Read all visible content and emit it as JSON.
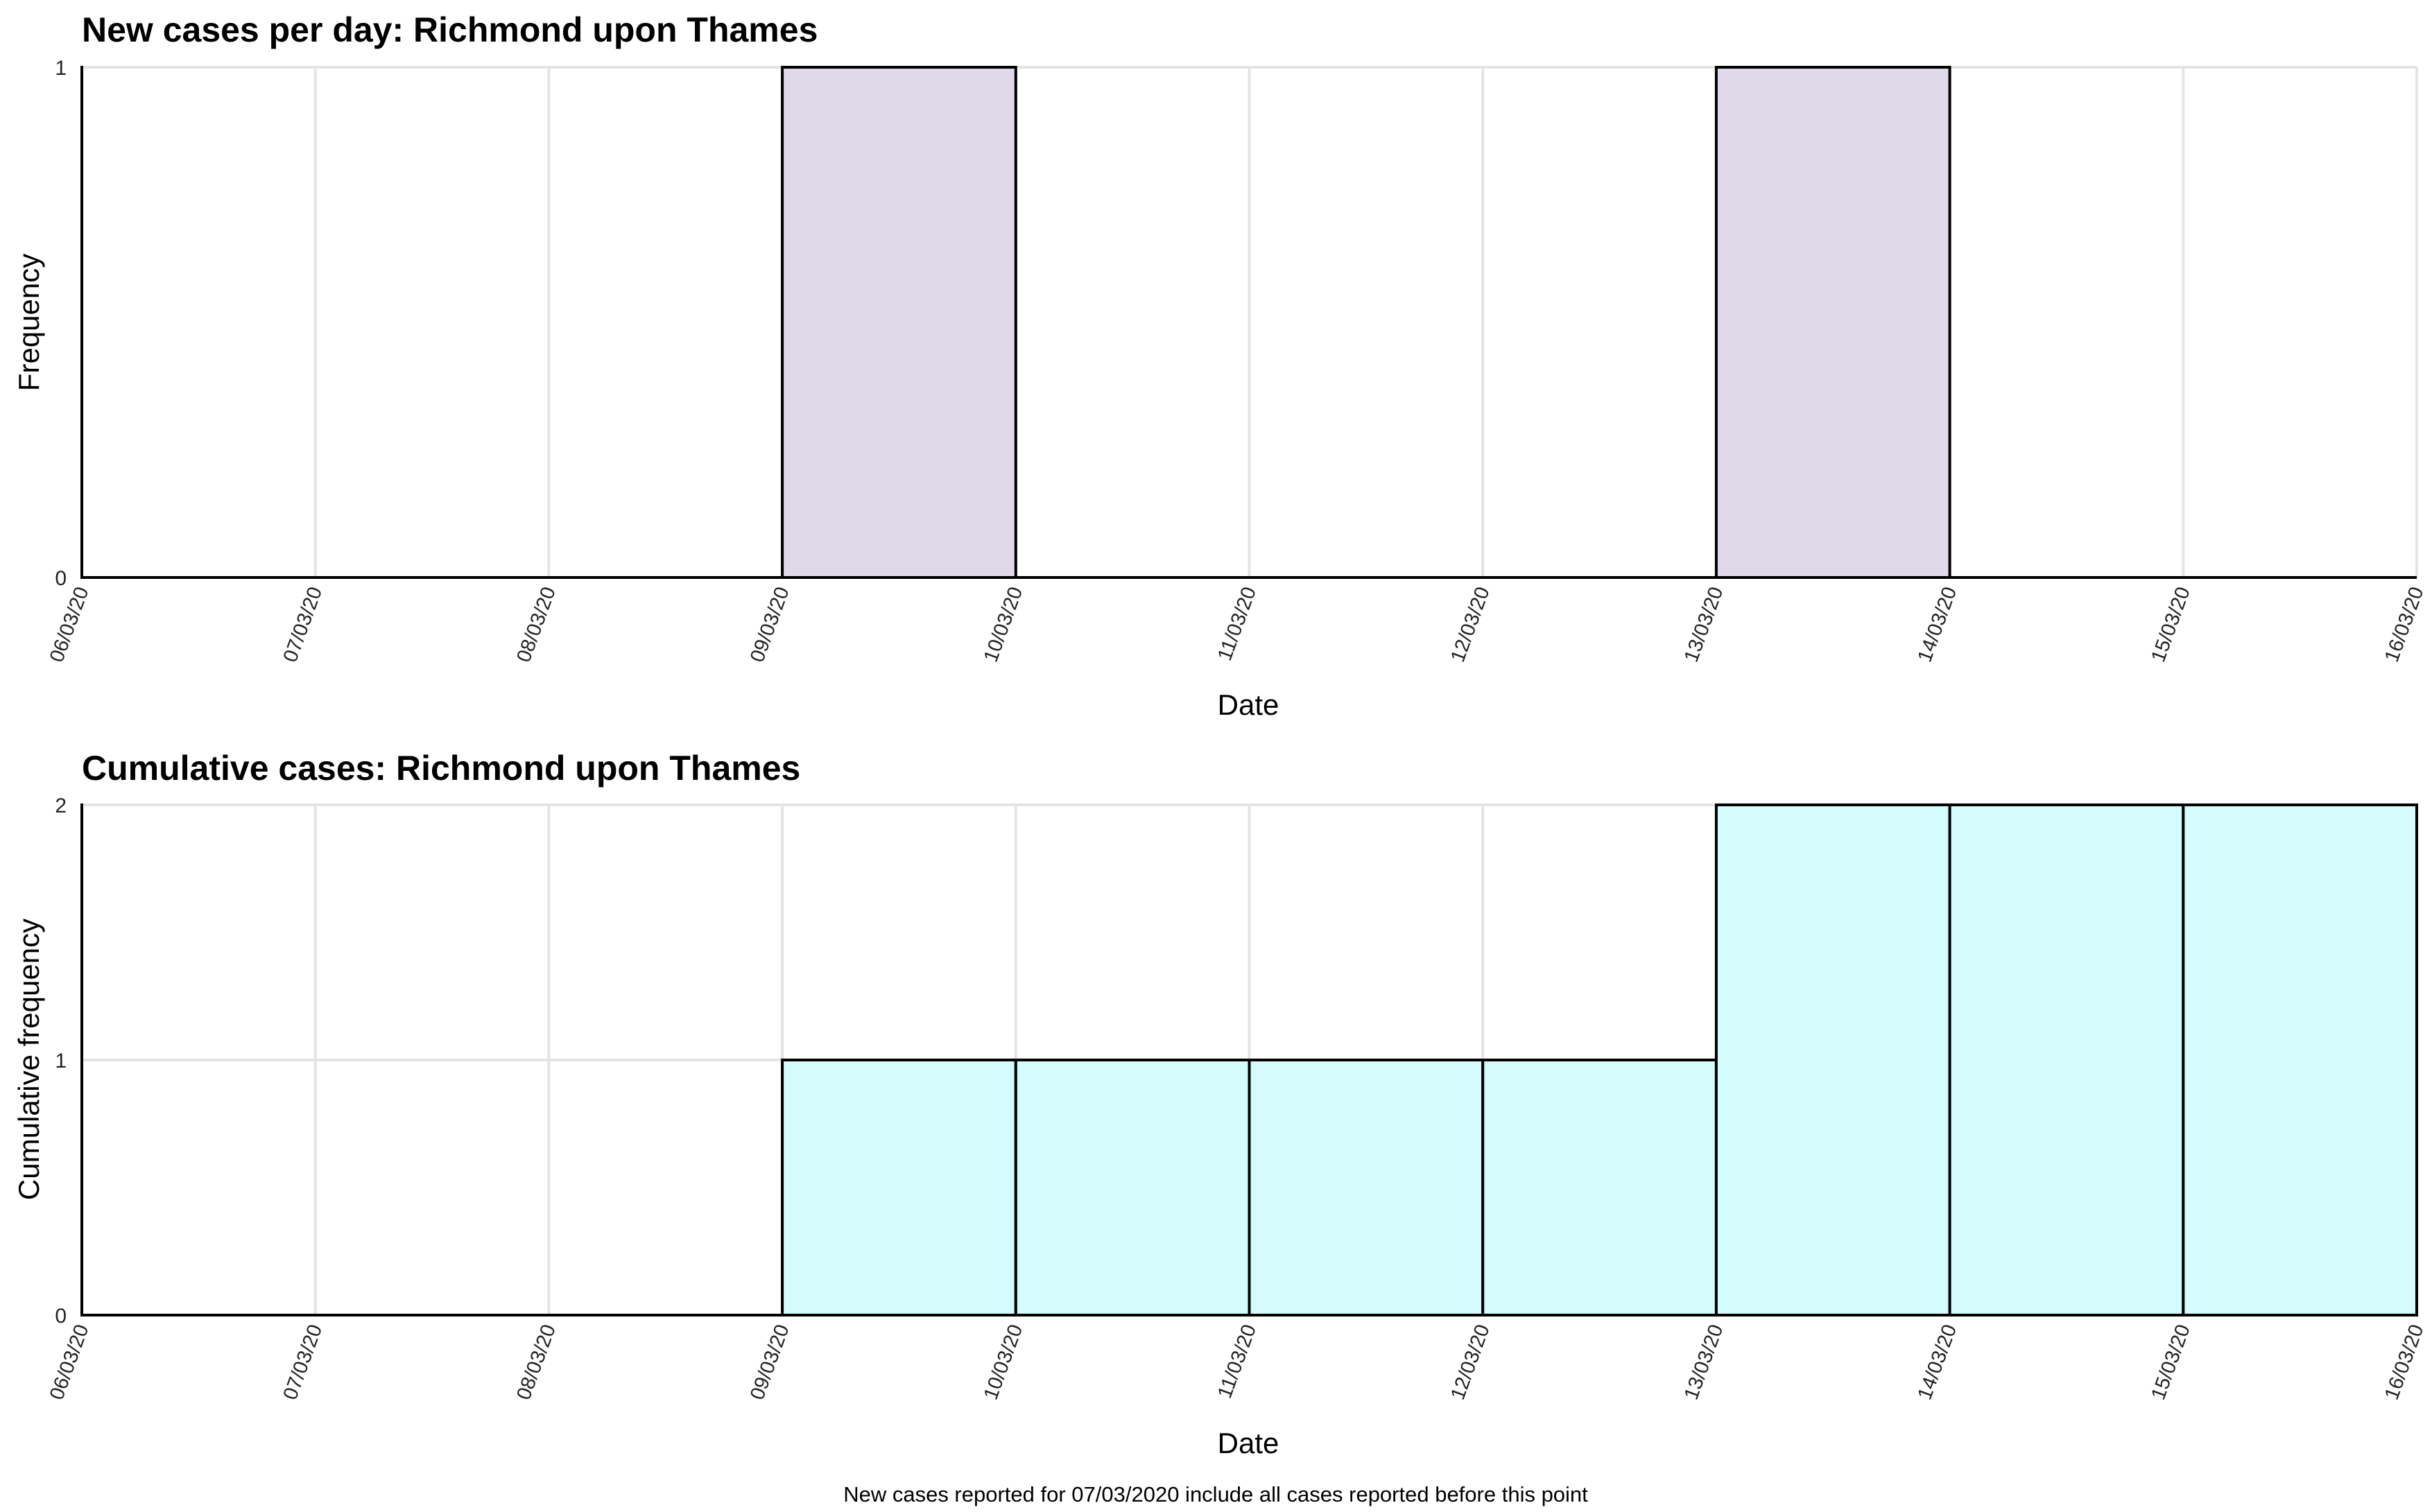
{
  "footnote": "New cases reported for 07/03/2020 include all cases reported before this point",
  "colors": {
    "daily_fill": "#e0d9ea",
    "cumulative_fill": "#d5fbfd",
    "bar_stroke": "#000000",
    "grid": "#e4e4e4"
  },
  "chart_data": [
    {
      "type": "bar",
      "title": "New cases per day: Richmond upon Thames",
      "xlabel": "Date",
      "ylabel": "Frequency",
      "ylim": [
        0,
        1
      ],
      "yticks": [
        "0",
        "1"
      ],
      "x_ticks": [
        "06/03/20",
        "07/03/20",
        "08/03/20",
        "09/03/20",
        "10/03/20",
        "11/03/20",
        "12/03/20",
        "13/03/20",
        "14/03/20",
        "15/03/20",
        "16/03/20"
      ],
      "categories": [
        "06/03/20",
        "07/03/20",
        "08/03/20",
        "09/03/20",
        "10/03/20",
        "11/03/20",
        "12/03/20",
        "13/03/20",
        "14/03/20",
        "15/03/20"
      ],
      "values": [
        0,
        0,
        0,
        1,
        0,
        0,
        0,
        1,
        0,
        0
      ],
      "grid": true,
      "fill": "#e0d9ea"
    },
    {
      "type": "bar",
      "title": "Cumulative cases: Richmond upon Thames",
      "xlabel": "Date",
      "ylabel": "Cumulative frequency",
      "ylim": [
        0,
        2
      ],
      "yticks": [
        "0",
        "1",
        "2"
      ],
      "x_ticks": [
        "06/03/20",
        "07/03/20",
        "08/03/20",
        "09/03/20",
        "10/03/20",
        "11/03/20",
        "12/03/20",
        "13/03/20",
        "14/03/20",
        "15/03/20",
        "16/03/20"
      ],
      "categories": [
        "06/03/20",
        "07/03/20",
        "08/03/20",
        "09/03/20",
        "10/03/20",
        "11/03/20",
        "12/03/20",
        "13/03/20",
        "14/03/20",
        "15/03/20"
      ],
      "values": [
        0,
        0,
        0,
        1,
        1,
        1,
        1,
        2,
        2,
        2
      ],
      "grid": true,
      "fill": "#d5fbfd"
    }
  ]
}
